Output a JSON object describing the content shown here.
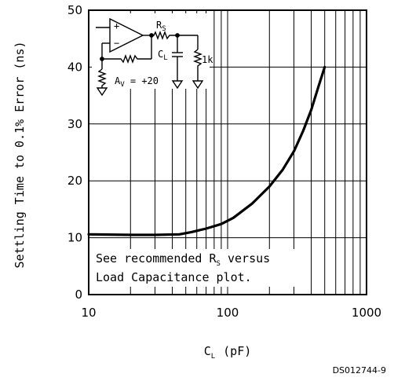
{
  "chart_data": {
    "type": "line",
    "x_scale": "log",
    "xlim": [
      10,
      1000
    ],
    "ylim": [
      0,
      50
    ],
    "grid": true,
    "x_ticks": [
      "10",
      "100",
      "1000"
    ],
    "y_ticks": [
      "0",
      "10",
      "20",
      "30",
      "40",
      "50"
    ],
    "xlabel": {
      "main": "C",
      "sub": "L",
      "unit": "(pF)"
    },
    "ylabel": "Settling Time to 0.1% Error (ns)",
    "series": [
      {
        "x": [
          10,
          20,
          30,
          45,
          55,
          70,
          90,
          110,
          150,
          200,
          250,
          300,
          350,
          400,
          450,
          500
        ],
        "y": [
          10.6,
          10.5,
          10.5,
          10.6,
          11.0,
          11.6,
          12.4,
          13.5,
          16.0,
          19.0,
          22.0,
          25.2,
          28.8,
          32.5,
          36.5,
          40.0
        ]
      }
    ],
    "annotation": {
      "line1_prefix": "See recommended R",
      "line1_sub": "S",
      "line1_suffix": " versus",
      "line2": "Load Capacitance plot."
    },
    "inset": {
      "rs_main": "R",
      "rs_sub": "S",
      "cl_main": "C",
      "cl_sub": "L",
      "r_load": "1k",
      "gain_prefix": "A",
      "gain_sub": "V",
      "gain_suffix": " = +20",
      "plus": "+",
      "minus": "−"
    },
    "figure_id": "DS012744-9"
  }
}
